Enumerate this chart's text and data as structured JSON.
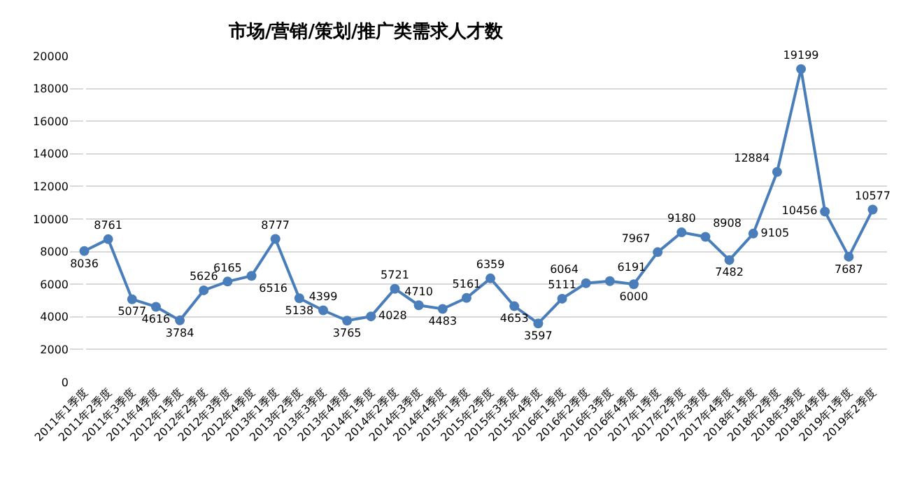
{
  "chart_data": {
    "type": "line",
    "title": "市场/营销/策划/推广类需求人才数",
    "categories": [
      "2011年1季度",
      "2011年2季度",
      "2011年3季度",
      "2011年4季度",
      "2012年1季度",
      "2012年2季度",
      "2012年3季度",
      "2012年4季度",
      "2013年1季度",
      "2013年2季度",
      "2013年3季度",
      "2013年4季度",
      "2014年1季度",
      "2014年2季度",
      "2014年3季度",
      "2014年4季度",
      "2015年1季度",
      "2015年2季度",
      "2015年3季度",
      "2015年4季度",
      "2016年1季度",
      "2016年2季度",
      "2016年3季度",
      "2016年4季度",
      "2017年1季度",
      "2017年2季度",
      "2017年3季度",
      "2017年4季度",
      "2018年1季度",
      "2018年2季度",
      "2018年3季度",
      "2018年4季度",
      "2019年1季度",
      "2019年2季度"
    ],
    "series": [
      {
        "color": "#4a7ebb",
        "values": [
          8036,
          8761,
          5077,
          4616,
          3784,
          5626,
          6165,
          6516,
          8777,
          5138,
          4399,
          3765,
          4028,
          5721,
          4710,
          4483,
          5161,
          6359,
          4653,
          3597,
          5111,
          6064,
          6191,
          6000,
          7967,
          9180,
          8908,
          7482,
          9105,
          12884,
          19199,
          10456,
          7687,
          10577
        ]
      }
    ],
    "ylim": [
      0,
      20000
    ],
    "yticks": [
      0,
      2000,
      4000,
      6000,
      8000,
      10000,
      12000,
      14000,
      16000,
      18000,
      20000
    ],
    "grid": "y",
    "marker": "circle",
    "line_style": "solid",
    "data_labels": true
  }
}
